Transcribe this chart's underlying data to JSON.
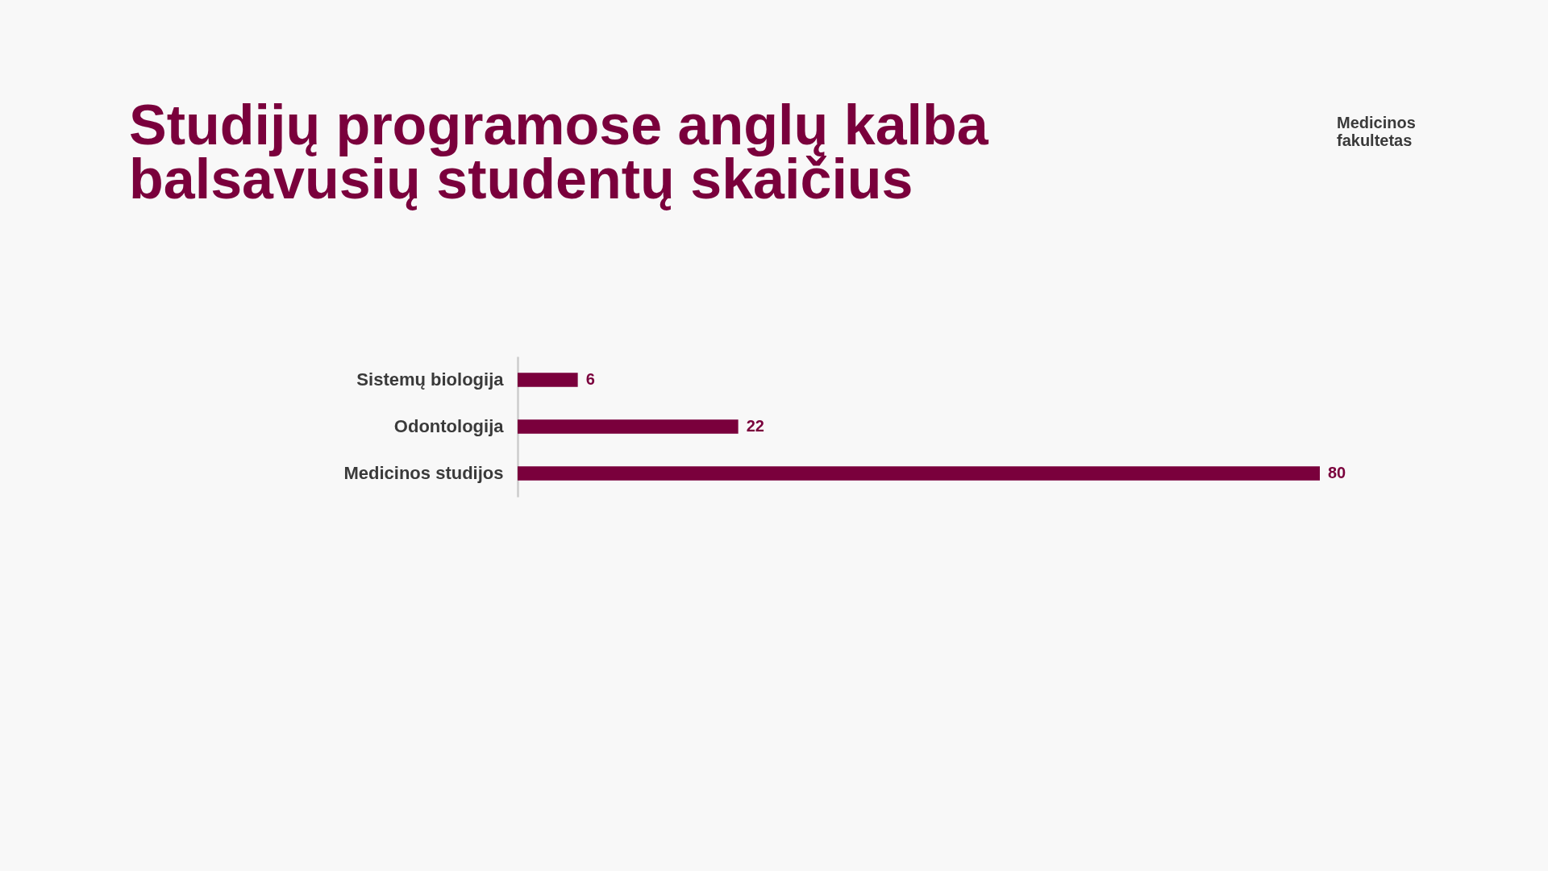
{
  "chart_data": {
    "type": "bar",
    "orientation": "horizontal",
    "title": "Studijų programose anglų kalba balsavusių studentų skaičius",
    "annotations": [
      "Medicinos fakultetas"
    ],
    "categories": [
      "Sistemų biologija",
      "Odontologija",
      "Medicinos studijos"
    ],
    "values": [
      6,
      22,
      80
    ],
    "color": "#7a003c",
    "data_labels": true
  }
}
